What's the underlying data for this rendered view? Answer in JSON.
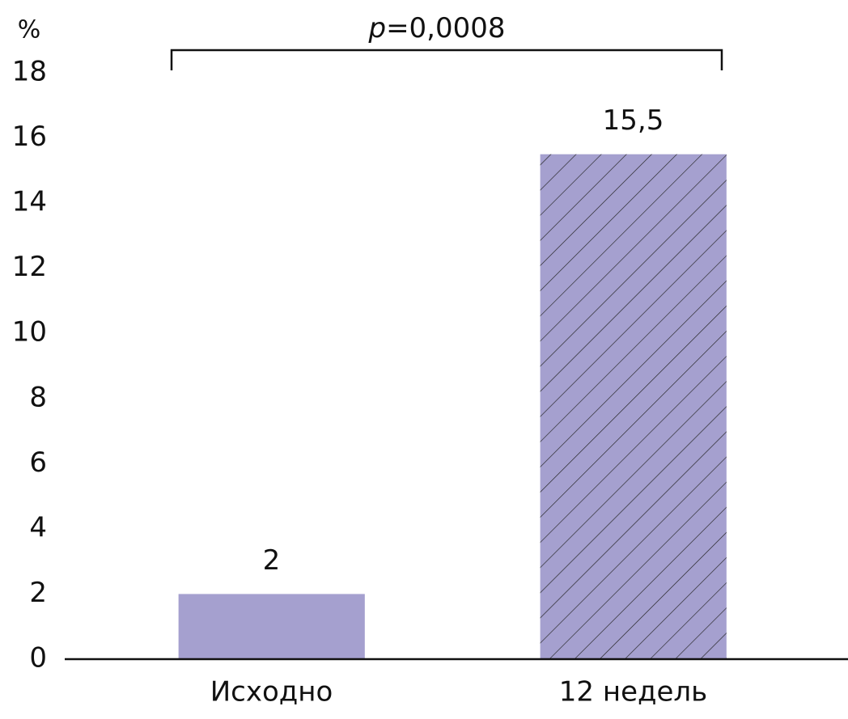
{
  "chart_data": {
    "type": "bar",
    "y_label": "%",
    "annotation": {
      "symbol": "p",
      "text": "=0,0008"
    },
    "categories": [
      "Исходно",
      "12 недель"
    ],
    "values": [
      2,
      15.5
    ],
    "value_labels": [
      "2",
      "15,5"
    ],
    "hatch": [
      false,
      true
    ],
    "color": "#a5a0cf",
    "ylim": [
      0,
      18
    ],
    "yticks": [
      0,
      2,
      4,
      6,
      8,
      10,
      12,
      14,
      16,
      18
    ],
    "grid": false
  }
}
